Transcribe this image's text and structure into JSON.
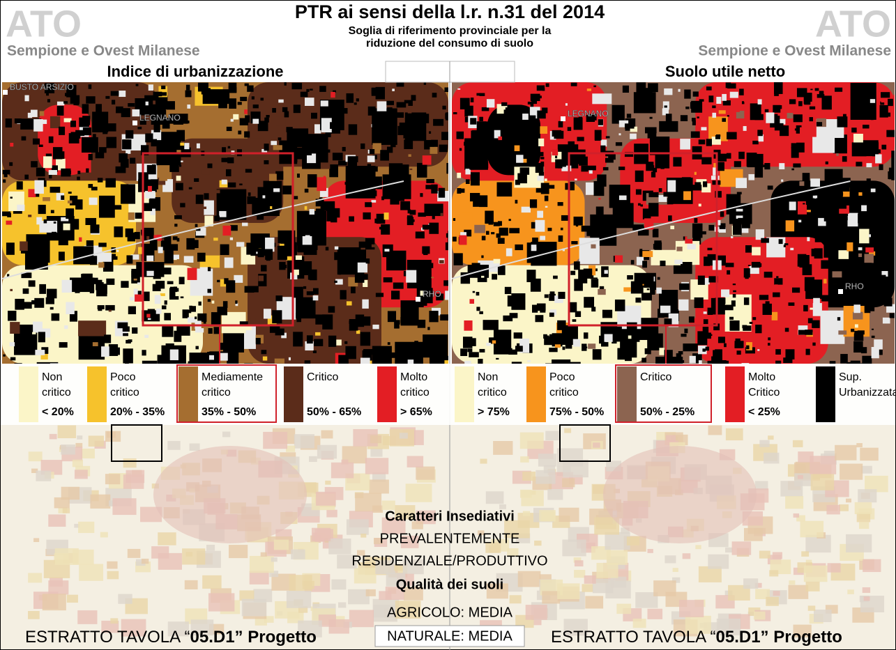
{
  "header": {
    "ato": "ATO",
    "area": "Sempione e Ovest Milanese",
    "title": "PTR ai sensi della l.r. n.31 del 2014",
    "subtitle": [
      "Soglia di riferimento provinciale per la",
      "riduzione del consumo di suolo"
    ]
  },
  "panels": [
    {
      "title": "Indice di urbanizzazione",
      "places": [
        "BUSTO ARSIZIO",
        "LEGNANO",
        "RHO"
      ],
      "legend": [
        {
          "label": [
            "Non",
            "critico"
          ],
          "range": "< 20%",
          "color": "#fbf5c8"
        },
        {
          "label": [
            "Poco",
            "critico"
          ],
          "range": "20% - 35%",
          "color": "#f6c22c"
        },
        {
          "label": [
            "Mediamente",
            "critico"
          ],
          "range": "35% - 50%",
          "color": "#a56e30"
        },
        {
          "label": [
            "Critico"
          ],
          "range": "50% - 65%",
          "color": "#5b2c1a"
        },
        {
          "label": [
            "Molto",
            "critico"
          ],
          "range": "> 65%",
          "color": "#e31e24"
        }
      ]
    },
    {
      "title": "Suolo utile netto",
      "places": [
        "LEGNANO",
        "RHO"
      ],
      "legend": [
        {
          "label": [
            "Non",
            "critico"
          ],
          "range": "> 75%",
          "color": "#fbf5c8"
        },
        {
          "label": [
            "Poco",
            "critico"
          ],
          "range": "75% - 50%",
          "color": "#f7941d"
        },
        {
          "label": [
            "Critico"
          ],
          "range": "50% - 25%",
          "color": "#8c6450"
        },
        {
          "label": [
            "Molto",
            "Critico"
          ],
          "range": "< 25%",
          "color": "#e31e24"
        },
        {
          "label": [
            "Sup.",
            "Urbanizzata"
          ],
          "color": "#000000"
        }
      ]
    }
  ],
  "center": {
    "heading1": "Caratteri Insediativi",
    "line1": "PREVALENTEMENTE",
    "line2": "RESIDENZIALE/PRODUTTIVO",
    "heading2": "Qualità dei suoli",
    "line3": "AGRICOLO: MEDIA",
    "line4": "NATURALE: MEDIA"
  },
  "footer": {
    "prefix": "ESTRATTO TAVOLA “",
    "code": "05.D1",
    "suffix": "” Progetto"
  }
}
